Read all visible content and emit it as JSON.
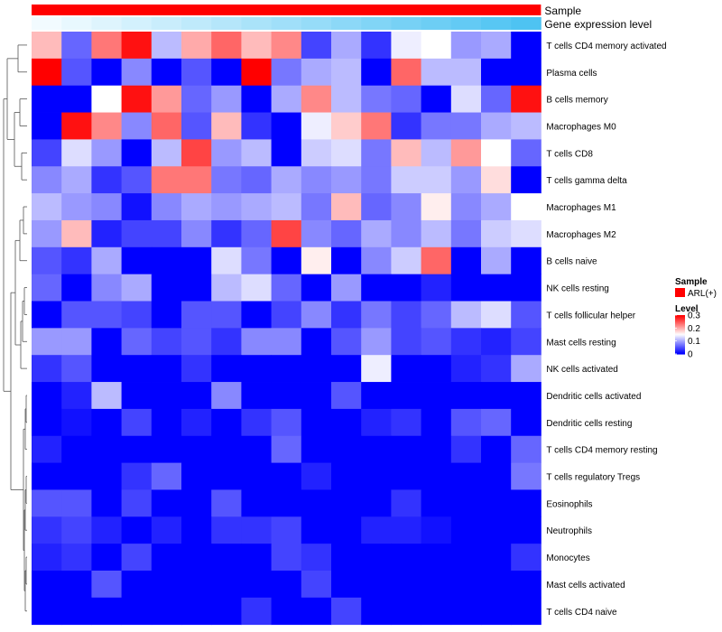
{
  "chart_data": {
    "type": "heatmap",
    "title": "",
    "annotations": [
      {
        "name": "Sample",
        "legend_title": "Sample",
        "legend_entries": [
          "ARL(+)"
        ],
        "color": "#ff0000"
      },
      {
        "name": "Gene expression level",
        "gradient": [
          "#f2fbff",
          "#4ec3f2"
        ]
      }
    ],
    "rows": [
      "T cells CD4 memory activated",
      "Plasma cells",
      "B cells memory",
      "Macrophages M0",
      "T cells CD8",
      "T cells gamma delta",
      "Macrophages M1",
      "Macrophages M2",
      "B cells naive",
      "NK cells resting",
      "T cells follicular helper",
      "Mast cells resting",
      "NK cells activated",
      "Dendritic cells activated",
      "Dendritic cells resting",
      "T cells CD4 memory resting",
      "T cells regulatory  Tregs",
      "Eosinophils",
      "Neutrophils",
      "Monocytes",
      "Mast cells activated",
      "T cells CD4 naive"
    ],
    "values": [
      [
        0.19,
        0.06,
        0.23,
        0.29,
        0.11,
        0.2,
        0.24,
        0.19,
        0.22,
        0.04,
        0.1,
        0.03,
        0.14,
        0.15,
        0.09,
        0.1,
        0.0
      ],
      [
        0.3,
        0.05,
        0.0,
        0.08,
        0.0,
        0.05,
        0.0,
        0.3,
        0.07,
        0.1,
        0.11,
        0.0,
        0.24,
        0.11,
        0.11,
        0.0,
        0.0
      ],
      [
        0.0,
        0.0,
        0.15,
        0.29,
        0.21,
        0.06,
        0.09,
        0.0,
        0.1,
        0.22,
        0.11,
        0.07,
        0.06,
        0.0,
        0.13,
        0.06,
        0.29
      ],
      [
        0.0,
        0.29,
        0.22,
        0.08,
        0.24,
        0.05,
        0.19,
        0.03,
        0.0,
        0.14,
        0.18,
        0.23,
        0.03,
        0.07,
        0.07,
        0.1,
        0.11
      ],
      [
        0.04,
        0.13,
        0.09,
        0.0,
        0.11,
        0.26,
        0.09,
        0.11,
        0.0,
        0.12,
        0.13,
        0.07,
        0.19,
        0.11,
        0.21,
        0.15,
        0.06
      ],
      [
        0.08,
        0.1,
        0.03,
        0.05,
        0.23,
        0.23,
        0.07,
        0.06,
        0.1,
        0.08,
        0.09,
        0.07,
        0.12,
        0.12,
        0.09,
        0.17,
        0.0
      ],
      [
        0.11,
        0.09,
        0.08,
        0.01,
        0.08,
        0.1,
        0.09,
        0.1,
        0.11,
        0.07,
        0.19,
        0.06,
        0.08,
        0.16,
        0.08,
        0.1,
        0.15
      ],
      [
        0.09,
        0.19,
        0.02,
        0.04,
        0.04,
        0.08,
        0.03,
        0.06,
        0.26,
        0.08,
        0.06,
        0.1,
        0.08,
        0.11,
        0.07,
        0.12,
        0.13
      ],
      [
        0.05,
        0.03,
        0.1,
        0.0,
        0.0,
        0.0,
        0.13,
        0.07,
        0.0,
        0.16,
        0.0,
        0.08,
        0.12,
        0.24,
        0.0,
        0.1,
        0.0
      ],
      [
        0.06,
        0.0,
        0.08,
        0.1,
        0.0,
        0.0,
        0.11,
        0.13,
        0.06,
        0.0,
        0.09,
        0.0,
        0.0,
        0.02,
        0.0,
        0.0,
        0.0
      ],
      [
        0.0,
        0.05,
        0.05,
        0.04,
        0.0,
        0.05,
        0.05,
        0.0,
        0.04,
        0.08,
        0.03,
        0.07,
        0.04,
        0.06,
        0.11,
        0.13,
        0.05
      ],
      [
        0.09,
        0.09,
        0.0,
        0.06,
        0.04,
        0.05,
        0.03,
        0.08,
        0.08,
        0.0,
        0.05,
        0.09,
        0.04,
        0.05,
        0.03,
        0.02,
        0.04
      ],
      [
        0.03,
        0.05,
        0.0,
        0.0,
        0.0,
        0.03,
        0.0,
        0.0,
        0.0,
        0.0,
        0.0,
        0.14,
        0.0,
        0.0,
        0.02,
        0.03,
        0.1
      ],
      [
        0.0,
        0.02,
        0.11,
        0.0,
        0.0,
        0.0,
        0.08,
        0.0,
        0.0,
        0.0,
        0.05,
        0.0,
        0.0,
        0.0,
        0.0,
        0.0,
        0.0
      ],
      [
        0.0,
        0.01,
        0.0,
        0.04,
        0.0,
        0.02,
        0.0,
        0.03,
        0.05,
        0.0,
        0.0,
        0.02,
        0.03,
        0.0,
        0.05,
        0.06,
        0.0
      ],
      [
        0.02,
        0.0,
        0.0,
        0.0,
        0.0,
        0.0,
        0.0,
        0.0,
        0.06,
        0.0,
        0.0,
        0.0,
        0.0,
        0.0,
        0.03,
        0.0,
        0.06
      ],
      [
        0.0,
        0.0,
        0.0,
        0.03,
        0.06,
        0.0,
        0.0,
        0.0,
        0.0,
        0.02,
        0.0,
        0.0,
        0.0,
        0.0,
        0.0,
        0.0,
        0.07
      ],
      [
        0.05,
        0.05,
        0.0,
        0.04,
        0.0,
        0.0,
        0.05,
        0.0,
        0.0,
        0.0,
        0.0,
        0.0,
        0.03,
        0.0,
        0.0,
        0.0,
        0.0
      ],
      [
        0.03,
        0.04,
        0.02,
        0.0,
        0.02,
        0.0,
        0.03,
        0.03,
        0.04,
        0.0,
        0.0,
        0.02,
        0.02,
        0.01,
        0.0,
        0.0,
        0.0
      ],
      [
        0.02,
        0.03,
        0.0,
        0.04,
        0.0,
        0.0,
        0.0,
        0.0,
        0.04,
        0.03,
        0.0,
        0.0,
        0.0,
        0.0,
        0.0,
        0.0,
        0.03
      ],
      [
        0.0,
        0.0,
        0.05,
        0.0,
        0.0,
        0.0,
        0.0,
        0.0,
        0.0,
        0.04,
        0.0,
        0.0,
        0.0,
        0.0,
        0.0,
        0.0,
        0.0
      ],
      [
        0.0,
        0.0,
        0.0,
        0.0,
        0.0,
        0.0,
        0.0,
        0.03,
        0.0,
        0.0,
        0.04,
        0.0,
        0.0,
        0.0,
        0.0,
        0.0,
        0.0
      ]
    ],
    "color_scale": {
      "title": "Level",
      "range": [
        0,
        0.3
      ],
      "ticks": [
        "0.3",
        "0.2",
        "0.1",
        "0"
      ],
      "low": "#0000ff",
      "mid": "#ffffff",
      "high": "#ff0000"
    },
    "row_dendrogram": true,
    "legend_position": "right"
  }
}
